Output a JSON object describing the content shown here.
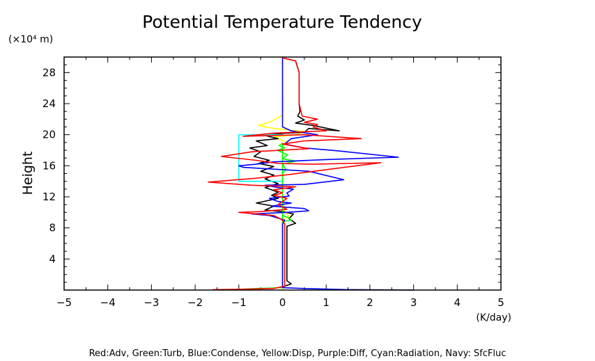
{
  "chart_data": {
    "type": "line",
    "title": "Potential Temperature Tendency",
    "xlabel": "(K/day)",
    "ylabel": "Height",
    "yunit": "(×10⁴ m)",
    "xlim": [
      -5,
      5
    ],
    "ylim": [
      0,
      30
    ],
    "xticks": [
      -5,
      -4,
      -3,
      -2,
      -1,
      0,
      1,
      2,
      3,
      4,
      5
    ],
    "yticks": [
      4,
      8,
      12,
      16,
      20,
      24,
      28
    ],
    "grid": false,
    "legend_text": "Red:Adv, Green:Turb, Blue:Condense, Yellow:Disp, Purple:Diff, Cyan:Radiation, Navy: SfcFluc",
    "series": [
      {
        "color": "#ffff00",
        "points": [
          [
            0,
            25
          ],
          [
            0,
            22.5
          ],
          [
            -0.3,
            21.6
          ],
          [
            -0.55,
            21.2
          ],
          [
            -0.2,
            20.8
          ],
          [
            0.5,
            20.4
          ],
          [
            0.3,
            20.0
          ],
          [
            -0.2,
            19.7
          ],
          [
            0.1,
            19.0
          ],
          [
            0.0,
            18.5
          ],
          [
            0.0,
            12
          ],
          [
            0.05,
            10
          ],
          [
            0.15,
            9.5
          ],
          [
            0.0,
            9
          ],
          [
            0.0,
            0
          ]
        ]
      },
      {
        "color": "#000000",
        "points": [
          [
            0,
            30
          ],
          [
            0,
            29.9
          ],
          [
            0.3,
            29.5
          ],
          [
            0.38,
            28
          ],
          [
            0.38,
            24
          ],
          [
            0.4,
            23
          ],
          [
            0.35,
            22.4
          ],
          [
            0.5,
            21.9
          ],
          [
            0.3,
            21.5
          ],
          [
            0.7,
            21.2
          ],
          [
            1.3,
            20.5
          ],
          [
            0.6,
            20.8
          ],
          [
            0.5,
            20.3
          ],
          [
            0.05,
            20.2
          ],
          [
            -0.4,
            19.9
          ],
          [
            -0.1,
            19.5
          ],
          [
            -0.6,
            19.2
          ],
          [
            -0.35,
            18.6
          ],
          [
            -0.75,
            18.3
          ],
          [
            -0.5,
            17.8
          ],
          [
            -0.65,
            17.2
          ],
          [
            -0.3,
            16.7
          ],
          [
            -0.55,
            16.3
          ],
          [
            -0.2,
            15.9
          ],
          [
            -0.5,
            15.3
          ],
          [
            -0.2,
            14.8
          ],
          [
            -0.4,
            14.3
          ],
          [
            -0.1,
            13.7
          ],
          [
            -0.4,
            13.2
          ],
          [
            -0.1,
            12.6
          ],
          [
            -0.25,
            12.2
          ],
          [
            -0.1,
            11.8
          ],
          [
            -0.6,
            11.2
          ],
          [
            -0.2,
            10.8
          ],
          [
            -0.4,
            10.3
          ],
          [
            0.0,
            10.1
          ],
          [
            0.25,
            9.8
          ],
          [
            0.15,
            9.2
          ],
          [
            0.3,
            8.6
          ],
          [
            0.1,
            8.2
          ],
          [
            0.1,
            1.2
          ],
          [
            0.2,
            0.8
          ],
          [
            0.05,
            0.5
          ],
          [
            0.0,
            0.3
          ]
        ]
      },
      {
        "color": "#00ffff",
        "points": [
          [
            0,
            20
          ],
          [
            -1.0,
            20
          ],
          [
            -1.0,
            14
          ],
          [
            0,
            14
          ]
        ]
      },
      {
        "color": "#00ff00",
        "points": [
          [
            -1.4,
            0
          ],
          [
            -0.6,
            0.2
          ],
          [
            0.0,
            0.3
          ],
          [
            0.0,
            18.9
          ],
          [
            -0.08,
            18.6
          ],
          [
            0.05,
            18.3
          ],
          [
            -0.12,
            18.0
          ],
          [
            0.0,
            17.7
          ],
          [
            0.12,
            17.4
          ],
          [
            0.0,
            16.9
          ],
          [
            0.3,
            16.6
          ],
          [
            0.0,
            16.2
          ],
          [
            0.08,
            15.5
          ],
          [
            0.0,
            15.0
          ],
          [
            0.0,
            9.6
          ],
          [
            0.15,
            9.3
          ],
          [
            0.2,
            9.0
          ],
          [
            0.0,
            8.8
          ]
        ]
      },
      {
        "color": "#0000ff",
        "points": [
          [
            0,
            30
          ],
          [
            0,
            21
          ],
          [
            0.2,
            20.5
          ],
          [
            0.8,
            20.0
          ],
          [
            0.2,
            19.5
          ],
          [
            0.05,
            18.8
          ],
          [
            0.5,
            18.3
          ],
          [
            1.3,
            17.9
          ],
          [
            2.65,
            17.1
          ],
          [
            1.0,
            16.8
          ],
          [
            -0.2,
            16.5
          ],
          [
            -0.6,
            16.2
          ],
          [
            -1.0,
            16.0
          ],
          [
            -0.9,
            15.8
          ],
          [
            -0.3,
            15.6
          ],
          [
            0.6,
            15.3
          ],
          [
            1.4,
            14.2
          ],
          [
            0.5,
            13.6
          ],
          [
            -0.4,
            13.5
          ],
          [
            -0.1,
            13.2
          ],
          [
            0.25,
            13.0
          ],
          [
            0.1,
            12.5
          ],
          [
            0.15,
            12.1
          ],
          [
            -0.3,
            11.8
          ],
          [
            -0.1,
            11.4
          ],
          [
            0.2,
            11.2
          ],
          [
            -0.25,
            10.8
          ],
          [
            0.5,
            10.5
          ],
          [
            0.6,
            10.2
          ],
          [
            0.1,
            10.0
          ],
          [
            -0.7,
            9.8
          ],
          [
            -0.3,
            9.6
          ],
          [
            0.05,
            9.0
          ],
          [
            0.0,
            8.5
          ],
          [
            0.0,
            0.3
          ],
          [
            0.5,
            0.2
          ],
          [
            1.5,
            0.05
          ]
        ]
      },
      {
        "color": "#000080",
        "points": [
          [
            1.5,
            0.05
          ],
          [
            3.0,
            0.0
          ]
        ]
      },
      {
        "color": "#ff0000",
        "points": [
          [
            0,
            30
          ],
          [
            0,
            29.9
          ],
          [
            0.3,
            29.5
          ],
          [
            0.38,
            28
          ],
          [
            0.38,
            24
          ],
          [
            0.45,
            22.4
          ],
          [
            0.8,
            22.0
          ],
          [
            0.5,
            21.6
          ],
          [
            0.8,
            21.3
          ],
          [
            0.7,
            21.0
          ],
          [
            1.0,
            20.5
          ],
          [
            -0.2,
            20.2
          ],
          [
            -0.9,
            19.8
          ],
          [
            0.5,
            20.0
          ],
          [
            1.8,
            19.5
          ],
          [
            0.5,
            19.2
          ],
          [
            0.0,
            18.8
          ],
          [
            0.6,
            18.2
          ],
          [
            -0.7,
            17.8
          ],
          [
            -1.4,
            17.2
          ],
          [
            -0.6,
            16.7
          ],
          [
            -0.1,
            16.3
          ],
          [
            0.7,
            16.2
          ],
          [
            2.25,
            16.4
          ],
          [
            1.0,
            15.5
          ],
          [
            0.2,
            14.9
          ],
          [
            -0.6,
            14.4
          ],
          [
            -1.7,
            13.9
          ],
          [
            -0.7,
            13.5
          ],
          [
            0.3,
            13.3
          ],
          [
            -0.2,
            12.9
          ],
          [
            0.0,
            12.5
          ],
          [
            -0.2,
            12.2
          ],
          [
            0.1,
            11.8
          ],
          [
            -0.1,
            11.0
          ],
          [
            0.1,
            10.4
          ],
          [
            -0.5,
            10.1
          ],
          [
            -1.0,
            10.0
          ],
          [
            -0.2,
            9.6
          ],
          [
            0.0,
            9.0
          ],
          [
            0.05,
            8.5
          ],
          [
            0.05,
            0.5
          ],
          [
            -0.2,
            0.2
          ],
          [
            -1.0,
            0.1
          ],
          [
            -1.6,
            0.05
          ]
        ]
      }
    ]
  }
}
